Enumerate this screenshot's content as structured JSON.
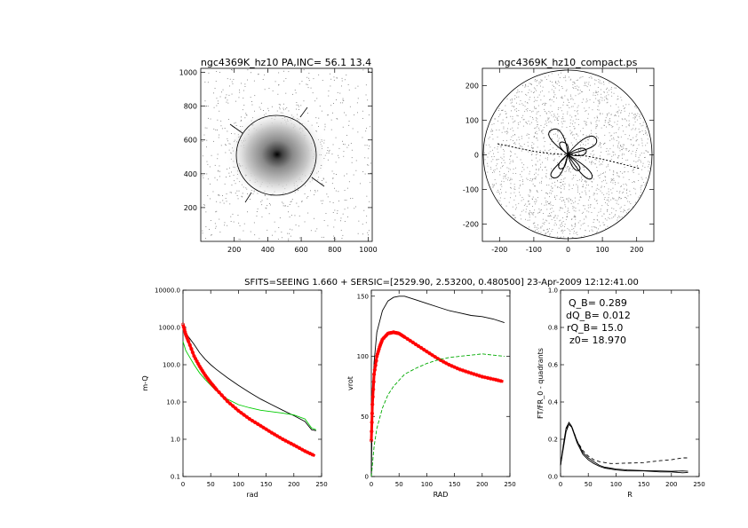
{
  "header": {
    "suptitle": "SFITS=SEEING 1.660 + SERSIC=[2529.90, 2.53200, 0.480500]  23-Apr-2009 12:12:41.00"
  },
  "chart_data": [
    {
      "id": "image",
      "type": "scatter",
      "title": "ngc4369K_hz10 PA,INC= 56.1 13.4",
      "xlim": [
        0,
        1024
      ],
      "ylim": [
        0,
        1024
      ],
      "xticks": [
        200,
        400,
        600,
        800,
        1000
      ],
      "yticks": [
        200,
        400,
        600,
        800,
        1000
      ]
    },
    {
      "id": "compact",
      "type": "scatter",
      "title": "ngc4369K_hz10_compact.ps",
      "xlim": [
        -250,
        250
      ],
      "ylim": [
        -250,
        250
      ],
      "xticks": [
        -200,
        -100,
        0,
        100,
        200
      ],
      "yticks": [
        -200,
        -100,
        0,
        100,
        200
      ]
    },
    {
      "id": "mu",
      "type": "line",
      "xlabel": "rad",
      "ylabel": "m-Q",
      "xlim": [
        0,
        250
      ],
      "ylim": [
        0.1,
        10000
      ],
      "yscale": "log",
      "xticks": [
        "0",
        "50",
        "100",
        "150",
        "200",
        "250"
      ],
      "yticks": [
        "0.1",
        "1.0",
        "10.0",
        "100.0",
        "1000.0",
        "10000.0"
      ],
      "series": [
        {
          "color": "#000000",
          "x": [
            0,
            5,
            10,
            20,
            30,
            40,
            50,
            60,
            80,
            100,
            120,
            140,
            160,
            180,
            200,
            220,
            232,
            240
          ],
          "y": [
            1000,
            700,
            560,
            350,
            210,
            140,
            100,
            75,
            45,
            28,
            18,
            12,
            8.5,
            6.0,
            4.3,
            3.0,
            1.8,
            1.7
          ]
        },
        {
          "color": "#00cc00",
          "x": [
            0,
            5,
            10,
            20,
            30,
            40,
            50,
            60,
            80,
            100,
            120,
            140,
            160,
            180,
            200,
            220,
            232,
            240
          ],
          "y": [
            420,
            240,
            180,
            100,
            60,
            40,
            28,
            20,
            12,
            8.5,
            7.0,
            6.0,
            5.5,
            5.0,
            4.5,
            3.5,
            2.0,
            1.8
          ]
        },
        {
          "color": "#ff0000",
          "x": [
            0,
            5,
            10,
            20,
            30,
            40,
            50,
            60,
            80,
            100,
            120,
            140,
            160,
            180,
            200,
            220,
            238
          ],
          "y": [
            1200,
            650,
            420,
            170,
            90,
            52,
            33,
            22,
            10.5,
            5.8,
            3.5,
            2.3,
            1.5,
            1.0,
            0.7,
            0.48,
            0.36
          ]
        }
      ]
    },
    {
      "id": "vrot",
      "type": "line",
      "xlabel": "RAD",
      "ylabel": "vrot",
      "xlim": [
        0,
        250
      ],
      "ylim": [
        0,
        155
      ],
      "xticks": [
        "0",
        "50",
        "100",
        "150",
        "200",
        "250"
      ],
      "yticks": [
        "0",
        "50",
        "100",
        "150"
      ],
      "series": [
        {
          "color": "#000000",
          "dash": "none",
          "x": [
            0,
            2,
            5,
            10,
            20,
            30,
            40,
            50,
            60,
            80,
            100,
            120,
            140,
            160,
            180,
            200,
            220,
            240
          ],
          "y": [
            0,
            60,
            95,
            120,
            138,
            146,
            149,
            150,
            150,
            147,
            144,
            141,
            138,
            136,
            134,
            133,
            131,
            128
          ]
        },
        {
          "color": "#ff0000",
          "dash": "none",
          "x": [
            0,
            2,
            5,
            10,
            15,
            20,
            30,
            40,
            50,
            60,
            80,
            100,
            120,
            140,
            160,
            180,
            200,
            220,
            238
          ],
          "y": [
            30,
            60,
            85,
            100,
            108,
            114,
            119,
            120,
            119,
            116,
            110,
            104,
            98,
            93,
            89,
            86,
            83,
            81,
            79
          ]
        },
        {
          "color": "#00aa00",
          "dash": "4,2",
          "x": [
            0,
            5,
            10,
            20,
            30,
            40,
            50,
            60,
            80,
            100,
            120,
            140,
            160,
            180,
            200,
            220,
            240
          ],
          "y": [
            0,
            25,
            40,
            57,
            68,
            75,
            80,
            85,
            90,
            94,
            97,
            99,
            100,
            101,
            102,
            101,
            100
          ]
        }
      ]
    },
    {
      "id": "ft",
      "type": "line",
      "xlabel": "R",
      "ylabel": "FT/FR_0 - quadrants",
      "xlim": [
        0,
        250
      ],
      "ylim": [
        0,
        1.0
      ],
      "xticks": [
        "0",
        "50",
        "100",
        "150",
        "200",
        "250"
      ],
      "yticks": [
        "0.0",
        "0.2",
        "0.4",
        "0.6",
        "0.8",
        "1.0"
      ],
      "annotations": [
        "Q_B=  0.289",
        "dQ_B=  0.012",
        "rQ_B=   15.0",
        "z0= 18.970"
      ],
      "series": [
        {
          "color": "#000000",
          "dash": "none",
          "x": [
            0,
            5,
            10,
            15,
            20,
            30,
            40,
            50,
            60,
            70,
            80,
            90,
            100,
            120,
            150,
            180,
            200,
            220,
            230
          ],
          "y": [
            0.06,
            0.17,
            0.26,
            0.29,
            0.27,
            0.19,
            0.13,
            0.1,
            0.08,
            0.06,
            0.05,
            0.045,
            0.04,
            0.035,
            0.032,
            0.03,
            0.028,
            0.03,
            0.028
          ]
        },
        {
          "color": "#000000",
          "dash": "none",
          "x": [
            0,
            5,
            10,
            15,
            20,
            30,
            40,
            50,
            60,
            70,
            80,
            90,
            100,
            120,
            150,
            180,
            200,
            220,
            230
          ],
          "y": [
            0.06,
            0.15,
            0.24,
            0.28,
            0.265,
            0.18,
            0.12,
            0.09,
            0.07,
            0.055,
            0.045,
            0.04,
            0.035,
            0.03,
            0.03,
            0.025,
            0.025,
            0.02,
            0.022
          ]
        },
        {
          "color": "#000000",
          "dash": "4,3",
          "x": [
            0,
            5,
            10,
            15,
            20,
            30,
            40,
            50,
            60,
            70,
            80,
            90,
            100,
            120,
            150,
            180,
            200,
            220,
            230
          ],
          "y": [
            0.06,
            0.16,
            0.25,
            0.29,
            0.27,
            0.19,
            0.14,
            0.11,
            0.09,
            0.08,
            0.075,
            0.07,
            0.07,
            0.072,
            0.075,
            0.085,
            0.09,
            0.1,
            0.1
          ]
        }
      ]
    }
  ]
}
